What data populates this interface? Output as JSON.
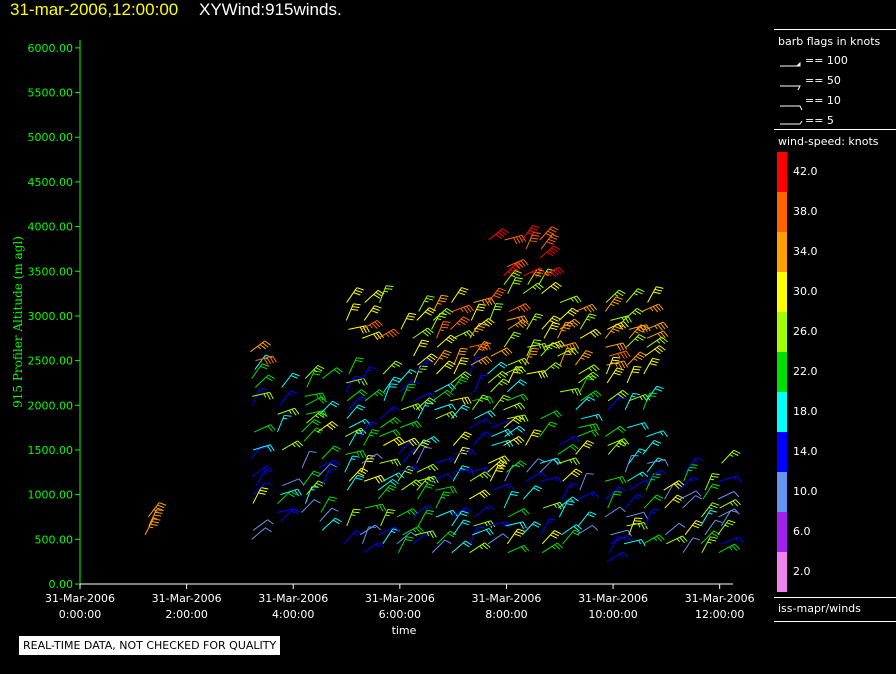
{
  "header": {
    "date_time": "31-mar-2006,12:00:00",
    "plot_name": "XYWind:915winds."
  },
  "legend": {
    "flags_title": "barb flags in knots",
    "flags": [
      {
        "label": "== 100",
        "knots": 100
      },
      {
        "label": "== 50",
        "knots": 50
      },
      {
        "label": "== 10",
        "knots": 10
      },
      {
        "label": "== 5",
        "knots": 5
      }
    ],
    "speed_title": "wind-speed: knots",
    "speed_colors": [
      {
        "label": "42.0",
        "color": "#ff0000"
      },
      {
        "label": "38.0",
        "color": "#ff6400"
      },
      {
        "label": "34.0",
        "color": "#ffa000"
      },
      {
        "label": "30.0",
        "color": "#ffff00"
      },
      {
        "label": "26.0",
        "color": "#a0ff00"
      },
      {
        "label": "22.0",
        "color": "#00e000"
      },
      {
        "label": "18.0",
        "color": "#00ffff"
      },
      {
        "label": "14.0",
        "color": "#0000ff"
      },
      {
        "label": "10.0",
        "color": "#6495ed"
      },
      {
        "label": "6.0",
        "color": "#a020f0"
      },
      {
        "label": "2.0",
        "color": "#ee82ee"
      }
    ],
    "source": "iss-mapr/winds"
  },
  "footer": {
    "quality_note": "REAL-TIME DATA, NOT CHECKED FOR QUALITY"
  },
  "colors": {
    "axis": "#00ff00",
    "background": "#000000",
    "text": "#ffffff"
  },
  "chart_data": {
    "type": "wind-barb time-height",
    "title": "31-mar-2006,12:00:00  XYWind:915winds.",
    "xlabel": "time",
    "ylabel": "915 Profiler Altitude (m agl)",
    "ylim": [
      0,
      6200
    ],
    "xlim_hours": [
      0,
      12.25
    ],
    "x_ticks": [
      {
        "hour": 0,
        "date": "31-Mar-2006",
        "time": "0:00:00"
      },
      {
        "hour": 2,
        "date": "31-Mar-2006",
        "time": "2:00:00"
      },
      {
        "hour": 4,
        "date": "31-Mar-2006",
        "time": "4:00:00"
      },
      {
        "hour": 6,
        "date": "31-Mar-2006",
        "time": "6:00:00"
      },
      {
        "hour": 8,
        "date": "31-Mar-2006",
        "time": "8:00:00"
      },
      {
        "hour": 10,
        "date": "31-Mar-2006",
        "time": "10:00:00"
      },
      {
        "hour": 12,
        "date": "31-Mar-2006",
        "time": "12:00:00"
      }
    ],
    "y_ticks": [
      "0.00",
      "500.00",
      "1000.00",
      "1500.00",
      "2000.00",
      "2500.00",
      "3000.00",
      "3500.00",
      "4000.00",
      "4500.00",
      "5000.00",
      "5500.00",
      "6000.00"
    ],
    "barb_times_hours": [
      1.25,
      3.25,
      3.75,
      4.2,
      4.5,
      5.0,
      5.3,
      5.65,
      6.0,
      6.3,
      6.65,
      7.0,
      7.35,
      7.7,
      8.0,
      8.35,
      8.65,
      9.0,
      9.35,
      9.9,
      10.25,
      10.6,
      11.0,
      11.3,
      11.7,
      12.0
    ],
    "speed_bins_knots": [
      2,
      6,
      10,
      14,
      18,
      22,
      26,
      30,
      34,
      38,
      42
    ]
  }
}
